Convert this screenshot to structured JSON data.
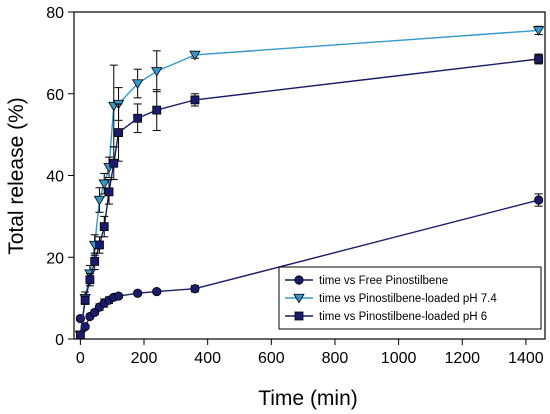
{
  "chart_data": {
    "type": "line",
    "title": "",
    "xlabel": "Time (min)",
    "ylabel": "Total release (%)",
    "xlim": [
      -20,
      1460
    ],
    "ylim": [
      0,
      80
    ],
    "xticks": [
      0,
      200,
      400,
      600,
      800,
      1000,
      1200,
      1400
    ],
    "yticks": [
      0,
      20,
      40,
      60,
      80
    ],
    "grid": false,
    "legend_position": "bottom-right",
    "series": [
      {
        "name": "time vs Free Pinostilbene",
        "marker": "circle",
        "color": "#1a1a6e",
        "points": [
          {
            "x": 0,
            "y": 5.0,
            "err": 0.5
          },
          {
            "x": 15,
            "y": 3.0,
            "err": 0.4
          },
          {
            "x": 30,
            "y": 5.5,
            "err": 0.5
          },
          {
            "x": 45,
            "y": 6.5,
            "err": 0.6
          },
          {
            "x": 60,
            "y": 7.8,
            "err": 0.8
          },
          {
            "x": 75,
            "y": 8.8,
            "err": 1.0
          },
          {
            "x": 90,
            "y": 9.5,
            "err": 0.8
          },
          {
            "x": 105,
            "y": 10.2,
            "err": 0.6
          },
          {
            "x": 120,
            "y": 10.5,
            "err": 0.5
          },
          {
            "x": 180,
            "y": 11.2,
            "err": 0.5
          },
          {
            "x": 240,
            "y": 11.6,
            "err": 0.5
          },
          {
            "x": 360,
            "y": 12.3,
            "err": 0.8
          },
          {
            "x": 1440,
            "y": 34.0,
            "err": 1.5
          }
        ]
      },
      {
        "name": "time vs Pinostilbene-loaded pH 7.4",
        "marker": "triangle-down",
        "color": "#3399cc",
        "points": [
          {
            "x": 0,
            "y": 1.0,
            "err": 0.5
          },
          {
            "x": 15,
            "y": 10.0,
            "err": 1.5
          },
          {
            "x": 30,
            "y": 16.0,
            "err": 2.0
          },
          {
            "x": 45,
            "y": 23.0,
            "err": 2.5
          },
          {
            "x": 60,
            "y": 34.0,
            "err": 3.0
          },
          {
            "x": 75,
            "y": 38.0,
            "err": 2.5
          },
          {
            "x": 90,
            "y": 42.0,
            "err": 2.5
          },
          {
            "x": 105,
            "y": 57.0,
            "err": 10.0
          },
          {
            "x": 120,
            "y": 57.5,
            "err": 4.0
          },
          {
            "x": 180,
            "y": 62.5,
            "err": 3.5
          },
          {
            "x": 240,
            "y": 65.5,
            "err": 5.0
          },
          {
            "x": 360,
            "y": 69.5,
            "err": 0.8
          },
          {
            "x": 1440,
            "y": 75.5,
            "err": 1.0
          }
        ]
      },
      {
        "name": "time vs Pinostilbene-loaded pH 6",
        "marker": "square",
        "color": "#1a1a6e",
        "points": [
          {
            "x": 0,
            "y": 1.0,
            "err": 0.5
          },
          {
            "x": 15,
            "y": 9.5,
            "err": 1.0
          },
          {
            "x": 30,
            "y": 14.5,
            "err": 1.5
          },
          {
            "x": 45,
            "y": 19.0,
            "err": 2.0
          },
          {
            "x": 60,
            "y": 23.0,
            "err": 2.0
          },
          {
            "x": 75,
            "y": 27.5,
            "err": 2.5
          },
          {
            "x": 90,
            "y": 36.0,
            "err": 3.0
          },
          {
            "x": 105,
            "y": 43.0,
            "err": 4.0
          },
          {
            "x": 120,
            "y": 50.5,
            "err": 7.0
          },
          {
            "x": 180,
            "y": 54.0,
            "err": 3.5
          },
          {
            "x": 240,
            "y": 56.0,
            "err": 5.0
          },
          {
            "x": 360,
            "y": 58.5,
            "err": 1.5
          },
          {
            "x": 1440,
            "y": 68.5,
            "err": 1.2
          }
        ]
      }
    ]
  }
}
